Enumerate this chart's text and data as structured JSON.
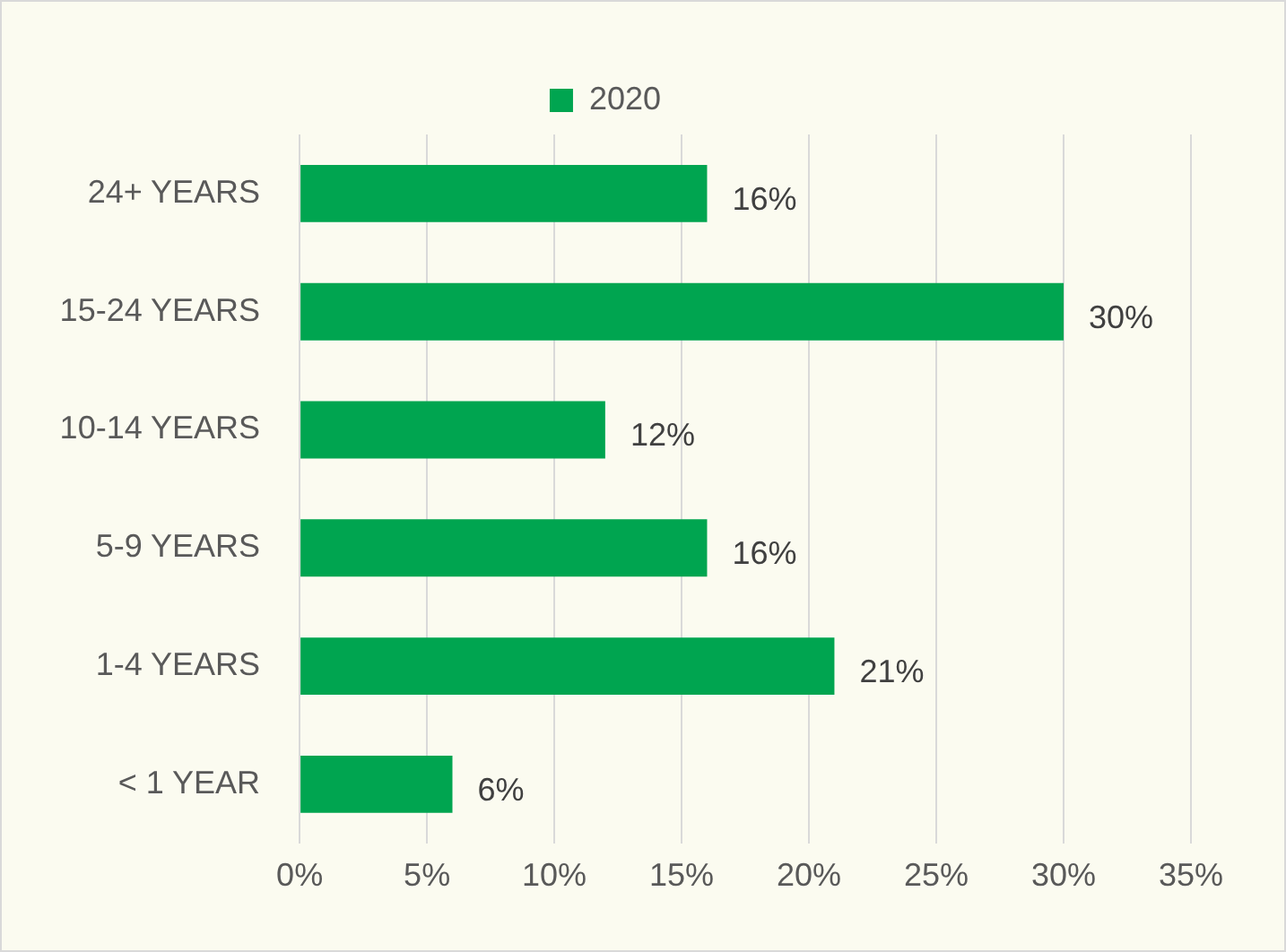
{
  "chart_data": {
    "type": "bar",
    "orientation": "horizontal",
    "categories": [
      "24+ YEARS",
      "15-24 YEARS",
      "10-14 YEARS",
      "5-9 YEARS",
      "1-4 YEARS",
      "< 1 YEAR"
    ],
    "series": [
      {
        "name": "2020",
        "color": "#00a550",
        "values": [
          16,
          30,
          12,
          16,
          21,
          6
        ],
        "value_labels": [
          "16%",
          "30%",
          "12%",
          "16%",
          "21%",
          "6%"
        ]
      }
    ],
    "xlim": [
      0,
      35
    ],
    "xticks": [
      {
        "value": 0,
        "label": "0%"
      },
      {
        "value": 5,
        "label": "5%"
      },
      {
        "value": 10,
        "label": "10%"
      },
      {
        "value": 15,
        "label": "15%"
      },
      {
        "value": 20,
        "label": "20%"
      },
      {
        "value": 25,
        "label": "25%"
      },
      {
        "value": 30,
        "label": "30%"
      },
      {
        "value": 35,
        "label": "35%"
      }
    ],
    "grid": "x",
    "legend": "top"
  }
}
